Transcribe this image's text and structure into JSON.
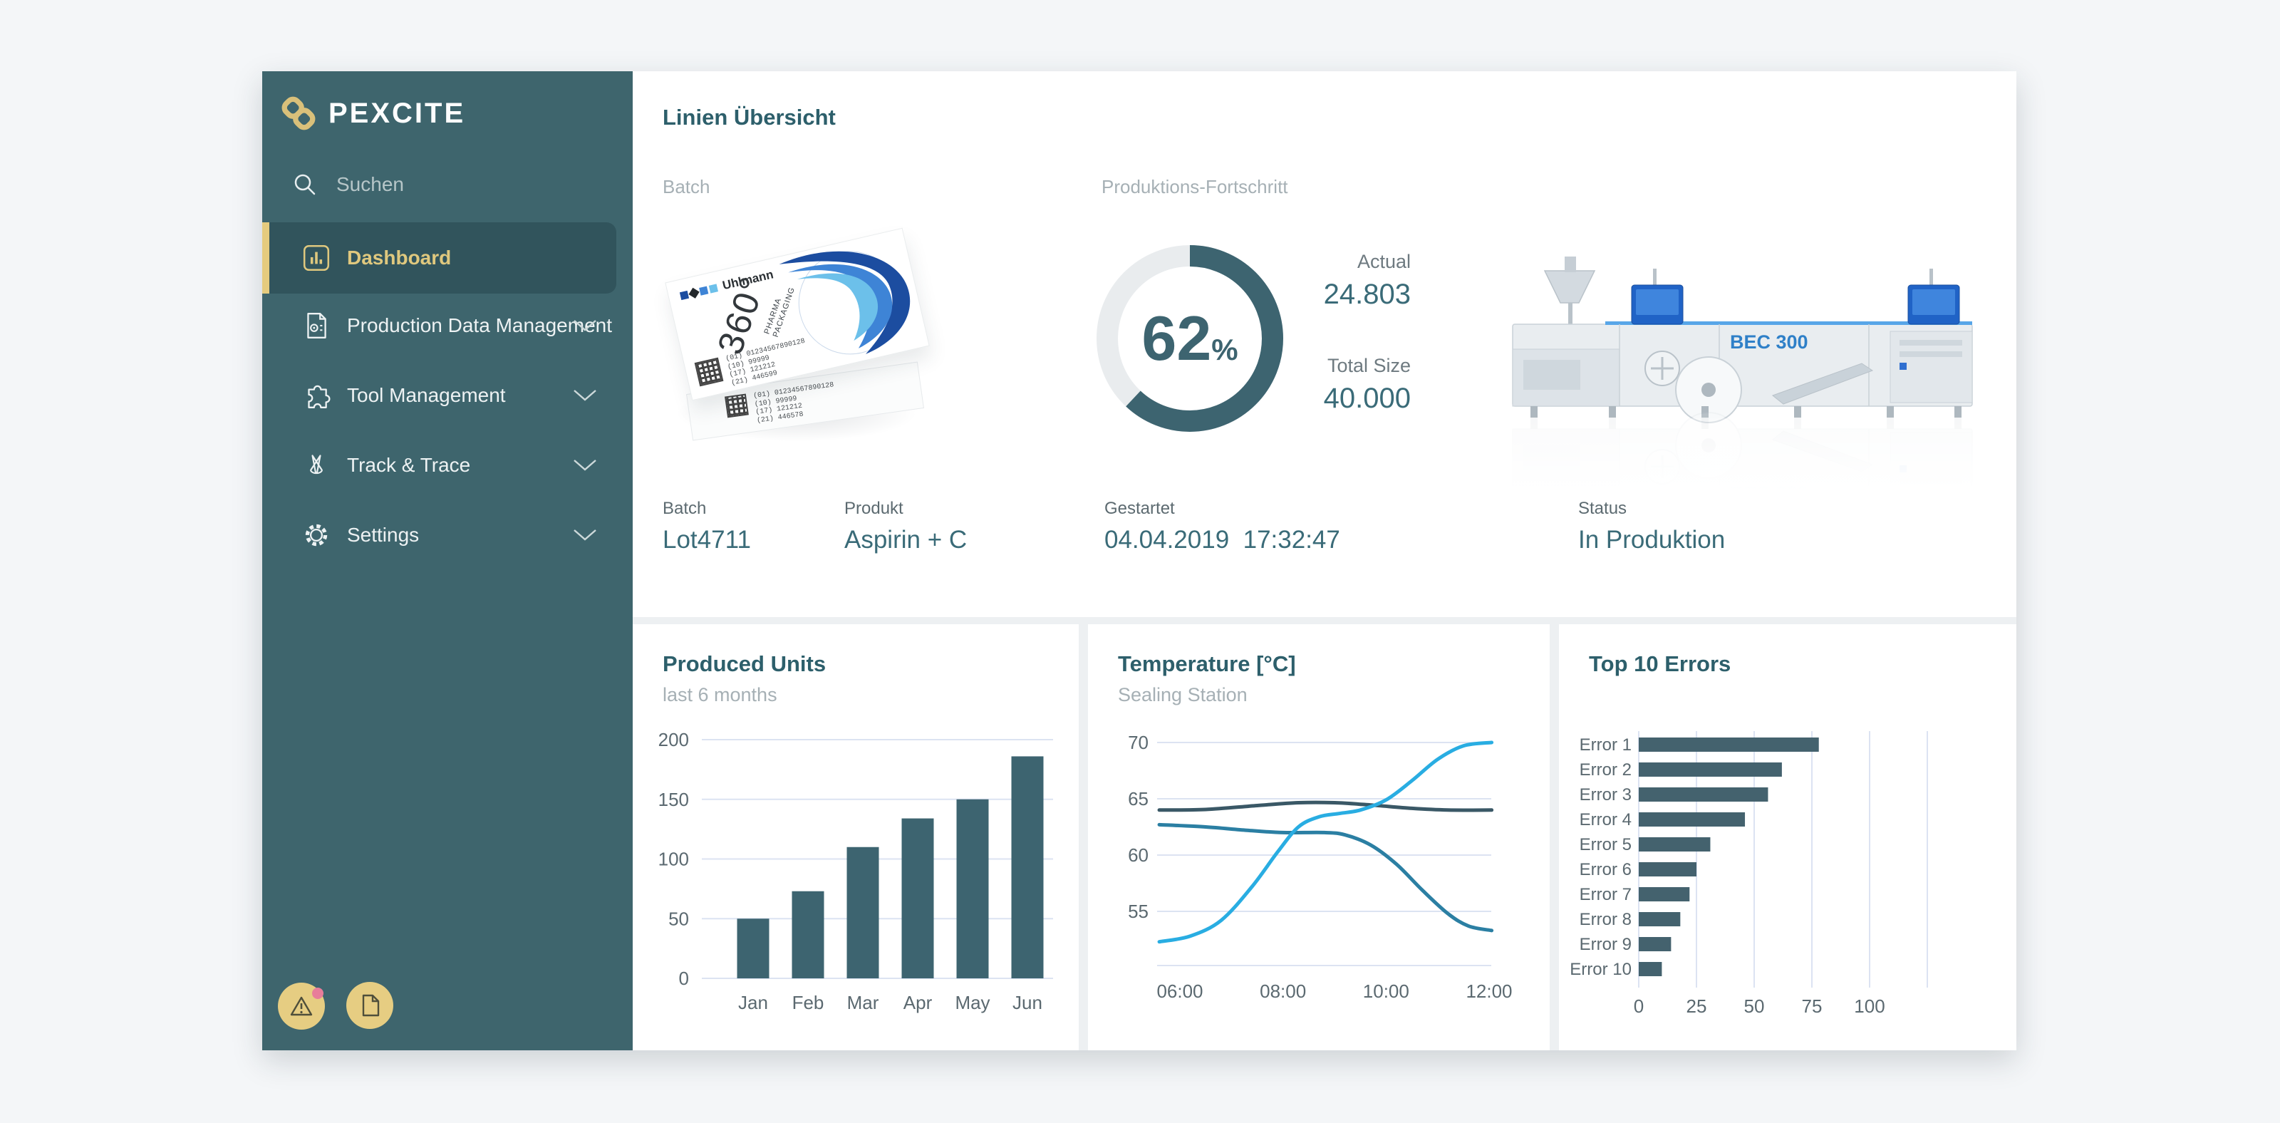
{
  "app": {
    "brand": "PEXCITE"
  },
  "sidebar": {
    "search_placeholder": "Suchen",
    "items": [
      {
        "label": "Dashboard",
        "active": true
      },
      {
        "label": "Production Data Management"
      },
      {
        "label": "Tool Management"
      },
      {
        "label": "Track & Trace"
      },
      {
        "label": "Settings"
      }
    ]
  },
  "page": {
    "title": "Linien Übersicht"
  },
  "batch_section": {
    "label": "Batch",
    "box": {
      "brand": "Uhlmann",
      "big_text": "360°",
      "sub_line1": "PHARMA",
      "sub_line2": "PACKAGING",
      "codes_top": [
        "(01) 01234567890128",
        "(10) 99999",
        "(17) 121212",
        "(21) 446599"
      ],
      "codes_bottom": [
        "(01) 01234567890128",
        "(10) 99999",
        "(17) 121212",
        "(21) 446578"
      ]
    }
  },
  "progress_section": {
    "label": "Produktions-Fortschritt",
    "percent": 62,
    "percent_suffix": "%",
    "actual_label": "Actual",
    "actual_value": "24.803",
    "total_label": "Total Size",
    "total_value": "40.000"
  },
  "machine": {
    "model": "BEC 300"
  },
  "info_row": [
    {
      "label": "Batch",
      "value": "Lot4711"
    },
    {
      "label": "Produkt",
      "value": "Aspirin + C"
    },
    {
      "label": "Gestartet",
      "value": "04.04.2019  17:32:47"
    },
    {
      "label": "Status",
      "value": "In Produktion"
    }
  ],
  "colors": {
    "sidebar": "#3e656d",
    "sidebar_active": "#31545c",
    "gold": "#d9c07a",
    "accent_bar": "#e5cb7e",
    "teal_heading": "#2d5f6b",
    "teal_value": "#3a6b78",
    "grid": "#dce3f2",
    "donut": "#3d6470",
    "donut_track": "#e9ecee",
    "bar": "#3d6470",
    "button_gold": "#e6cd82",
    "notification_pink": "#e87d9a"
  },
  "chart_data": [
    {
      "type": "bar",
      "title": "Produced Units",
      "subtitle": "last 6 months",
      "categories": [
        "Jan",
        "Feb",
        "Mar",
        "Apr",
        "May",
        "Jun"
      ],
      "values": [
        50,
        73,
        110,
        134,
        150,
        186
      ],
      "yticks": [
        0,
        50,
        100,
        150,
        200
      ],
      "ylim": [
        0,
        200
      ],
      "bar_color": "#3d6470",
      "grid": true
    },
    {
      "type": "line",
      "title": "Temperature [°C]",
      "subtitle": "Sealing Station",
      "x_ticks": [
        "06:00",
        "08:00",
        "10:00",
        "12:00"
      ],
      "x_tick_hours": [
        6,
        8,
        10,
        12
      ],
      "yticks": [
        55,
        60,
        65,
        70
      ],
      "ylim": [
        50.2,
        70.5
      ],
      "grid": true,
      "series": [
        {
          "name": "sensor-dark",
          "color": "#3a5866",
          "x": [
            5.6,
            6.5,
            7.5,
            8.3,
            9.0,
            9.7,
            10.5,
            11.2,
            12.05
          ],
          "y": [
            64.0,
            64.05,
            64.4,
            64.65,
            64.65,
            64.45,
            64.15,
            64.0,
            64.0
          ]
        },
        {
          "name": "sensor-mid",
          "color": "#2b7fa3",
          "x": [
            5.6,
            6.5,
            7.3,
            8.0,
            8.8,
            9.2,
            9.7,
            10.2,
            10.7,
            11.2,
            11.6,
            12.05
          ],
          "y": [
            62.7,
            62.5,
            62.2,
            62.0,
            62.0,
            61.8,
            60.9,
            59.2,
            56.9,
            54.8,
            53.7,
            53.3
          ]
        },
        {
          "name": "sensor-bright",
          "color": "#29ade2",
          "x": [
            5.6,
            6.2,
            6.8,
            7.4,
            7.9,
            8.3,
            8.7,
            9.1,
            9.5,
            10.0,
            10.5,
            11.0,
            11.5,
            12.05
          ],
          "y": [
            52.3,
            52.8,
            54.2,
            57.2,
            60.3,
            62.5,
            63.4,
            63.7,
            64.0,
            64.9,
            66.6,
            68.5,
            69.7,
            70.0
          ]
        }
      ]
    },
    {
      "type": "bar-horizontal",
      "title": "Top 10 Errors",
      "categories": [
        "Error 1",
        "Error 2",
        "Error 3",
        "Error 4",
        "Error 5",
        "Error 6",
        "Error 7",
        "Error 8",
        "Error 9",
        "Error 10"
      ],
      "values": [
        78,
        62,
        56,
        46,
        31,
        25,
        22,
        18,
        14,
        10
      ],
      "xticks": [
        0,
        25,
        50,
        75,
        100
      ],
      "xlim": [
        0,
        125
      ],
      "bar_color": "#44626e",
      "grid": true
    }
  ]
}
